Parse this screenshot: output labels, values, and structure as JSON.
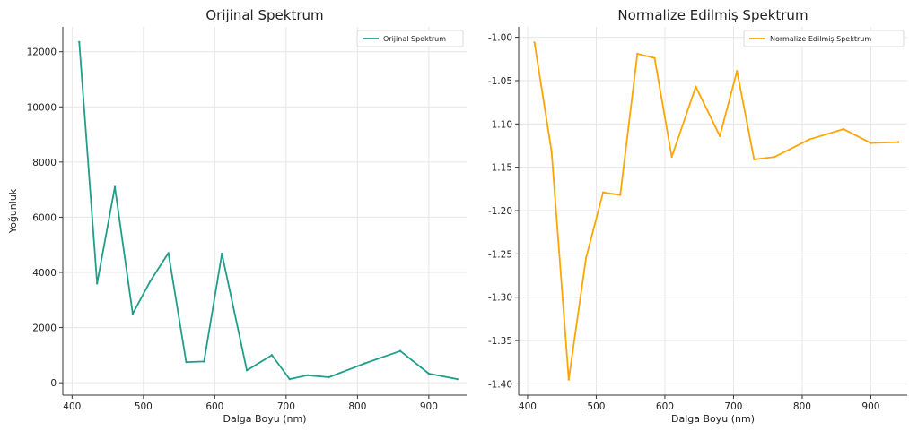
{
  "chart_data": [
    {
      "type": "line",
      "title": "Orijinal Spektrum",
      "xlabel": "Dalga Boyu (nm)",
      "ylabel": "Yoğunluk",
      "xlim": [
        387,
        953
      ],
      "ylim": [
        -450,
        12900
      ],
      "xticks": [
        400,
        500,
        600,
        700,
        800,
        900
      ],
      "yticks": [
        0,
        2000,
        4000,
        6000,
        8000,
        10000,
        12000
      ],
      "grid": true,
      "legend_position": "top-right",
      "series": [
        {
          "name": "Orijinal Spektrum",
          "color": "#1f9e89",
          "x": [
            410,
            435,
            460,
            485,
            510,
            535,
            560,
            585,
            610,
            645,
            680,
            705,
            730,
            760,
            810,
            860,
            900,
            940
          ],
          "y": [
            12350,
            3600,
            7100,
            2500,
            3700,
            4700,
            750,
            770,
            4680,
            450,
            1000,
            130,
            270,
            200,
            700,
            1150,
            330,
            130
          ]
        }
      ]
    },
    {
      "type": "line",
      "title": "Normalize Edilmiş Spektrum",
      "xlabel": "Dalga Boyu (nm)",
      "ylabel": "",
      "xlim": [
        387,
        953
      ],
      "ylim": [
        -1.413,
        -0.988
      ],
      "xticks": [
        400,
        500,
        600,
        700,
        800,
        900
      ],
      "yticks": [
        -1.4,
        -1.35,
        -1.3,
        -1.25,
        -1.2,
        -1.15,
        -1.1,
        -1.05,
        -1.0
      ],
      "grid": true,
      "legend_position": "top-right",
      "series": [
        {
          "name": "Normalize Edilmiş Spektrum",
          "color": "#ffa500",
          "x": [
            410,
            435,
            460,
            485,
            510,
            535,
            560,
            585,
            610,
            645,
            680,
            705,
            730,
            760,
            810,
            860,
            900,
            940
          ],
          "y": [
            -1.006,
            -1.132,
            -1.395,
            -1.255,
            -1.179,
            -1.182,
            -1.019,
            -1.024,
            -1.138,
            -1.057,
            -1.114,
            -1.039,
            -1.141,
            -1.138,
            -1.118,
            -1.106,
            -1.122,
            -1.121
          ]
        }
      ]
    }
  ]
}
